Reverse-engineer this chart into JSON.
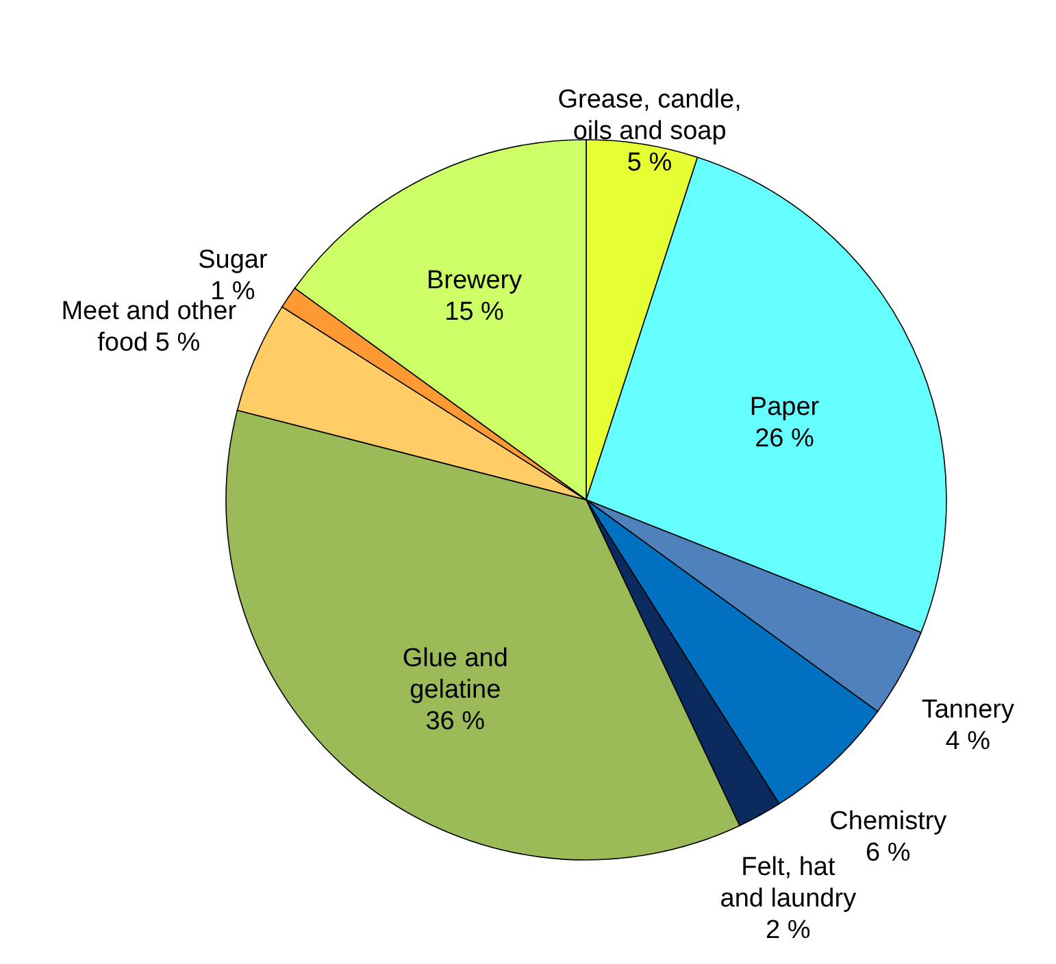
{
  "chart_data": {
    "type": "pie",
    "categories": [
      "Grease, candle, oils and soap",
      "Paper",
      "Tannery",
      "Chemistry",
      "Felt, hat and laundry",
      "Glue and gelatine",
      "Meet and other food",
      "Sugar",
      "Brewery"
    ],
    "values": [
      5,
      26,
      4,
      6,
      2,
      36,
      5,
      1,
      15
    ],
    "value_labels": [
      "5 %",
      "26 %",
      "4 %",
      "6 %",
      "2 %",
      "36 %",
      "5 %",
      "1 %",
      "15 %"
    ],
    "colors": [
      "#e5ff33",
      "#66ffff",
      "#4f81bd",
      "#0070c0",
      "#0b2a5e",
      "#9bbb59",
      "#ffcc66",
      "#ff9933",
      "#ccff66"
    ],
    "legend": false
  }
}
